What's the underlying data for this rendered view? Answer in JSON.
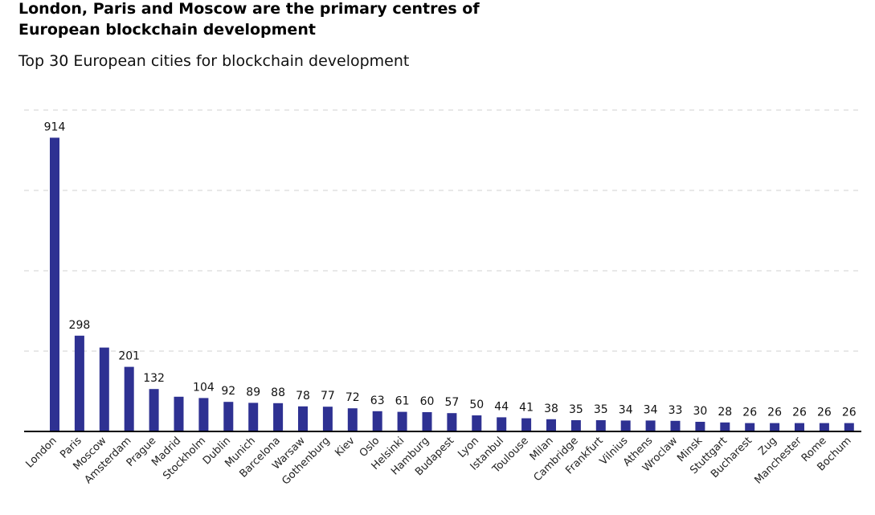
{
  "title": "London, Paris and Moscow are the primary centres of European blockchain development",
  "subtitle": "Top 30 European cities for blockchain development",
  "chart_data": {
    "type": "bar",
    "bar_color": "#2e3192",
    "grid": true,
    "ylim": [
      0,
      1000
    ],
    "categories": [
      "London",
      "Paris",
      "Moscow",
      "Amsterdam",
      "Prague",
      "Madrid",
      "Stockholm",
      "Dublin",
      "Munich",
      "Barcelona",
      "Warsaw",
      "Gothenburg",
      "Kiev",
      "Oslo",
      "Helsinki",
      "Hamburg",
      "Budapest",
      "Lyon",
      "Istanbul",
      "Toulouse",
      "Milan",
      "Cambridge",
      "Frankfurt",
      "Vilnius",
      "Athens",
      "Wroclaw",
      "Minsk",
      "Stuttgart",
      "Bucharest",
      "Zug",
      "Manchester",
      "Rome",
      "Bochum"
    ],
    "values": [
      914,
      298,
      261,
      201,
      132,
      108,
      104,
      92,
      89,
      88,
      78,
      77,
      72,
      63,
      61,
      60,
      57,
      50,
      44,
      41,
      38,
      35,
      35,
      34,
      34,
      33,
      30,
      28,
      26,
      26,
      26,
      26,
      26
    ],
    "data_labels": [
      "914",
      "298",
      "",
      "201",
      "132",
      "",
      "104",
      "92",
      "89",
      "88",
      "78",
      "77",
      "72",
      "63",
      "61",
      "60",
      "57",
      "50",
      "44",
      "41",
      "38",
      "35",
      "35",
      "34",
      "34",
      "33",
      "30",
      "28",
      "26",
      "26",
      "26",
      "26",
      "26"
    ]
  }
}
